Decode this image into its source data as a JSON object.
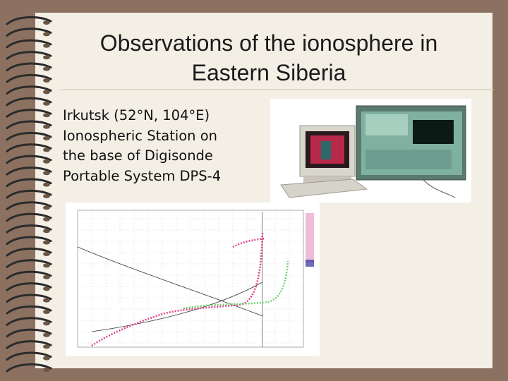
{
  "slide": {
    "title": [
      "Observations of the ionosphere in",
      "Eastern Siberia"
    ],
    "body": [
      "Irkutsk (52°N, 104°E)",
      "Ionospheric Station on",
      "the base of Digisonde",
      "Portable System DPS-4"
    ]
  }
}
